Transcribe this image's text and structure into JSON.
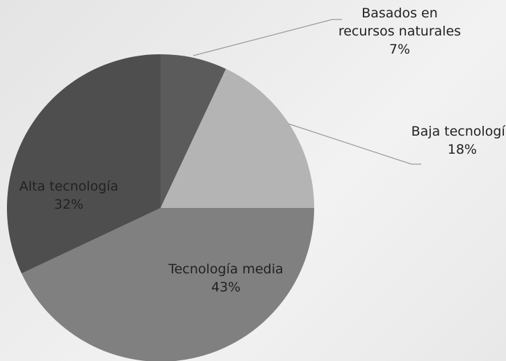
{
  "chart_data": {
    "type": "pie",
    "categories": [
      "Basados en recursos naturales",
      "Baja tecnología",
      "Tecnología media",
      "Alta tecnología"
    ],
    "values": [
      7,
      18,
      43,
      32
    ],
    "value_labels": [
      "7%",
      "18%",
      "43%",
      "32%"
    ],
    "colors": [
      "#5b5b5b",
      "#b4b4b4",
      "#808080",
      "#4e4e4e"
    ]
  }
}
